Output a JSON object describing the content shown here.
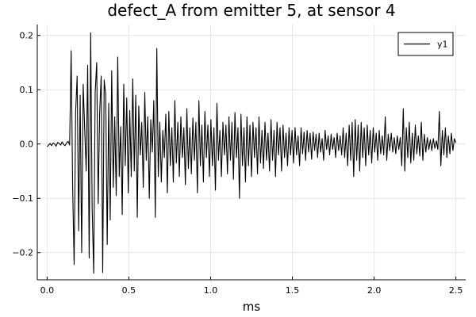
{
  "chart_data": {
    "type": "line",
    "title": "defect_A from emitter 5, at sensor 4",
    "xlabel": "ms",
    "ylabel": "",
    "xlim": [
      -0.06,
      2.56
    ],
    "ylim": [
      -0.25,
      0.22
    ],
    "grid": true,
    "legend_placement": "top-right",
    "x_ticks": [
      0.0,
      0.5,
      1.0,
      1.5,
      2.0,
      2.5
    ],
    "x_tick_labels": [
      "0.0",
      "0.5",
      "1.0",
      "1.5",
      "2.0",
      "2.5"
    ],
    "y_ticks": [
      -0.2,
      -0.1,
      0.0,
      0.1,
      0.2
    ],
    "y_tick_labels": [
      "−0.2",
      "−0.1",
      "0.0",
      "0.1",
      "0.2"
    ],
    "series": [
      {
        "name": "y1",
        "color": "#000000",
        "x_start": 0.0,
        "x_end": 2.5,
        "values": [
          -0.005,
          -0.002,
          0.001,
          -0.003,
          0.002,
          0.0,
          -0.004,
          0.003,
          0.001,
          -0.002,
          0.004,
          -0.001,
          -0.003,
          0.002,
          0.005,
          -0.002,
          0.172,
          -0.08,
          -0.222,
          0.06,
          0.125,
          -0.16,
          0.09,
          -0.2,
          0.11,
          0.03,
          -0.05,
          0.145,
          -0.21,
          0.205,
          -0.12,
          -0.238,
          0.095,
          0.15,
          -0.11,
          0.06,
          0.125,
          -0.237,
          0.118,
          0.09,
          -0.185,
          0.075,
          -0.14,
          0.135,
          -0.08,
          0.05,
          -0.095,
          0.16,
          -0.06,
          0.032,
          -0.13,
          0.11,
          -0.04,
          0.085,
          -0.09,
          0.062,
          -0.06,
          0.12,
          -0.05,
          0.09,
          -0.135,
          0.07,
          -0.02,
          0.04,
          -0.08,
          0.095,
          -0.03,
          0.05,
          -0.1,
          0.045,
          -0.015,
          0.08,
          -0.135,
          0.176,
          -0.06,
          0.04,
          -0.07,
          0.025,
          -0.025,
          0.055,
          -0.09,
          0.06,
          -0.04,
          0.03,
          -0.07,
          0.08,
          -0.035,
          0.04,
          -0.06,
          0.05,
          -0.025,
          0.03,
          -0.075,
          0.065,
          -0.045,
          0.03,
          -0.055,
          0.048,
          -0.03,
          0.04,
          -0.09,
          0.08,
          -0.04,
          0.035,
          -0.07,
          0.06,
          -0.025,
          0.035,
          -0.06,
          0.045,
          -0.04,
          0.03,
          -0.085,
          0.075,
          -0.03,
          0.025,
          -0.06,
          0.04,
          -0.02,
          0.035,
          -0.055,
          0.05,
          -0.03,
          0.04,
          -0.065,
          0.058,
          -0.025,
          0.03,
          -0.1,
          0.055,
          -0.04,
          0.03,
          -0.07,
          0.05,
          -0.04,
          0.035,
          -0.06,
          0.04,
          -0.025,
          0.03,
          -0.055,
          0.05,
          -0.035,
          0.025,
          -0.045,
          0.04,
          -0.03,
          0.02,
          -0.05,
          0.045,
          -0.03,
          0.025,
          -0.06,
          0.04,
          -0.02,
          0.03,
          -0.05,
          0.035,
          -0.025,
          0.02,
          -0.04,
          0.03,
          -0.02,
          0.025,
          -0.035,
          0.03,
          -0.02,
          0.015,
          -0.04,
          0.03,
          -0.018,
          0.022,
          -0.03,
          0.025,
          -0.015,
          0.02,
          -0.028,
          0.022,
          -0.012,
          0.018,
          -0.025,
          0.02,
          -0.015,
          0.01,
          -0.03,
          0.025,
          -0.01,
          0.015,
          -0.02,
          0.018,
          -0.01,
          0.012,
          -0.025,
          0.02,
          -0.012,
          0.015,
          -0.02,
          0.03,
          -0.025,
          0.02,
          -0.04,
          0.035,
          -0.03,
          0.04,
          -0.06,
          0.045,
          -0.03,
          0.035,
          -0.05,
          0.04,
          -0.025,
          0.03,
          -0.04,
          0.035,
          -0.02,
          0.025,
          -0.035,
          0.03,
          -0.015,
          0.02,
          -0.03,
          0.025,
          -0.018,
          0.015,
          -0.02,
          0.05,
          -0.03,
          0.018,
          -0.012,
          0.02,
          -0.015,
          0.012,
          -0.018,
          0.015,
          -0.01,
          0.012,
          -0.04,
          0.065,
          -0.05,
          0.03,
          -0.025,
          0.04,
          -0.035,
          0.02,
          -0.03,
          0.035,
          -0.018,
          0.015,
          -0.022,
          0.04,
          -0.03,
          0.018,
          -0.015,
          0.012,
          -0.01,
          0.008,
          -0.012,
          0.01,
          -0.008,
          0.006,
          -0.01,
          0.06,
          -0.04,
          0.025,
          -0.02,
          0.03,
          -0.025,
          0.015,
          -0.018,
          0.02,
          -0.012,
          0.01,
          0.002
        ]
      }
    ]
  }
}
